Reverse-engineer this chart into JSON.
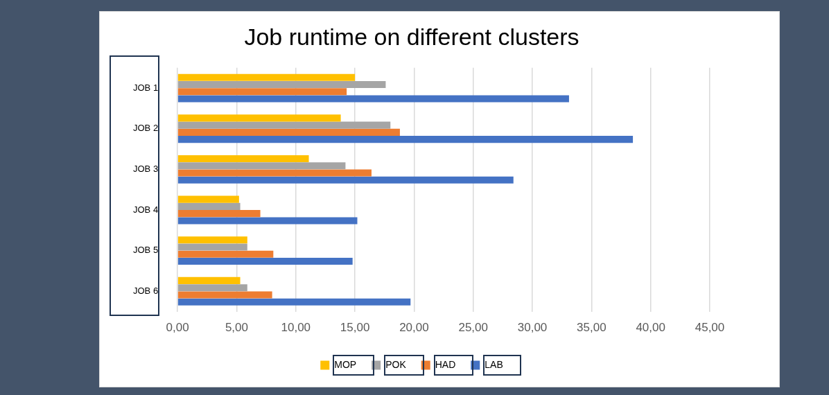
{
  "chart_data": {
    "type": "bar",
    "orientation": "horizontal",
    "title": "Job runtime on different clusters",
    "categories": [
      "JOB 1",
      "JOB 2",
      "JOB 3",
      "JOB 4",
      "JOB 5",
      "JOB 6"
    ],
    "series": [
      {
        "name": "MOP",
        "color": "#ffc000",
        "values": [
          15.0,
          13.8,
          11.1,
          5.2,
          5.9,
          5.3
        ]
      },
      {
        "name": "POK",
        "color": "#a5a5a5",
        "values": [
          17.6,
          18.0,
          14.2,
          5.3,
          5.9,
          5.9
        ]
      },
      {
        "name": "HAD",
        "color": "#ed7d31",
        "values": [
          14.3,
          18.8,
          16.4,
          7.0,
          8.1,
          8.0
        ]
      },
      {
        "name": "LAB",
        "color": "#4472c4",
        "values": [
          33.1,
          38.5,
          28.4,
          15.2,
          14.8,
          19.7
        ]
      }
    ],
    "xlim": [
      0,
      45
    ],
    "xticks": [
      {
        "value": 0,
        "label": "0,00"
      },
      {
        "value": 5,
        "label": "5,00"
      },
      {
        "value": 10,
        "label": "10,00"
      },
      {
        "value": 15,
        "label": "15,00"
      },
      {
        "value": 20,
        "label": "20,00"
      },
      {
        "value": 25,
        "label": "25,00"
      },
      {
        "value": 30,
        "label": "30,00"
      },
      {
        "value": 35,
        "label": "35,00"
      },
      {
        "value": 40,
        "label": "40,00"
      },
      {
        "value": 45,
        "label": "45,00"
      }
    ],
    "grid": "x",
    "legend": "bottom"
  }
}
